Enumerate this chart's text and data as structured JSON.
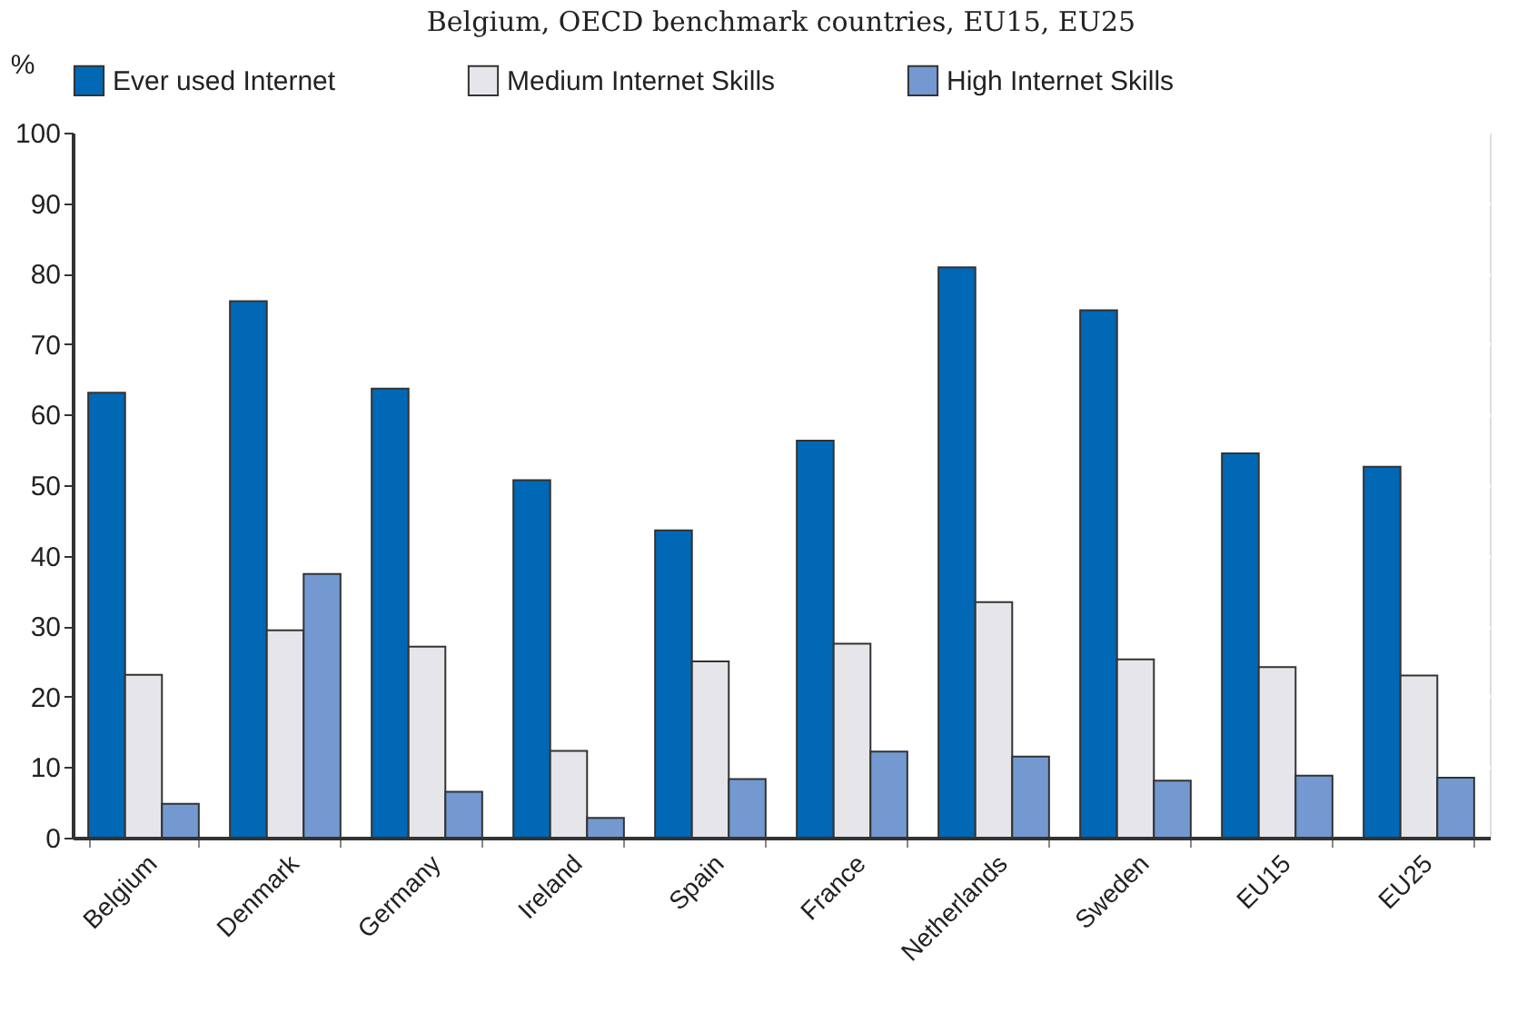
{
  "chart_data": {
    "type": "bar",
    "title": "Belgium, OECD benchmark countries, EU15, EU25",
    "ylabel": "%",
    "categories": [
      "Belgium",
      "Denmark",
      "Germany",
      "Ireland",
      "Spain",
      "France",
      "Netherlands",
      "Sweden",
      "EU15",
      "EU25"
    ],
    "series": [
      {
        "name": "Ever used Internet",
        "color": "#0068b5",
        "values": [
          63.1,
          76.1,
          63.7,
          50.7,
          43.6,
          56.3,
          80.9,
          74.8,
          54.5,
          52.6
        ]
      },
      {
        "name": "Medium Internet Skills",
        "color": "#e6e6ea",
        "values": [
          23.1,
          29.4,
          27.1,
          12.3,
          25.0,
          27.5,
          33.4,
          25.3,
          24.2,
          23.0
        ]
      },
      {
        "name": "High Internet Skills",
        "color": "#7399d0",
        "values": [
          4.8,
          37.4,
          6.5,
          2.8,
          8.3,
          12.2,
          11.5,
          8.1,
          8.8,
          8.5
        ]
      }
    ],
    "ylim": [
      0,
      100
    ],
    "yticks": [
      0,
      10,
      20,
      30,
      40,
      50,
      60,
      70,
      80,
      90,
      100
    ],
    "grid": true,
    "legend": "top"
  }
}
